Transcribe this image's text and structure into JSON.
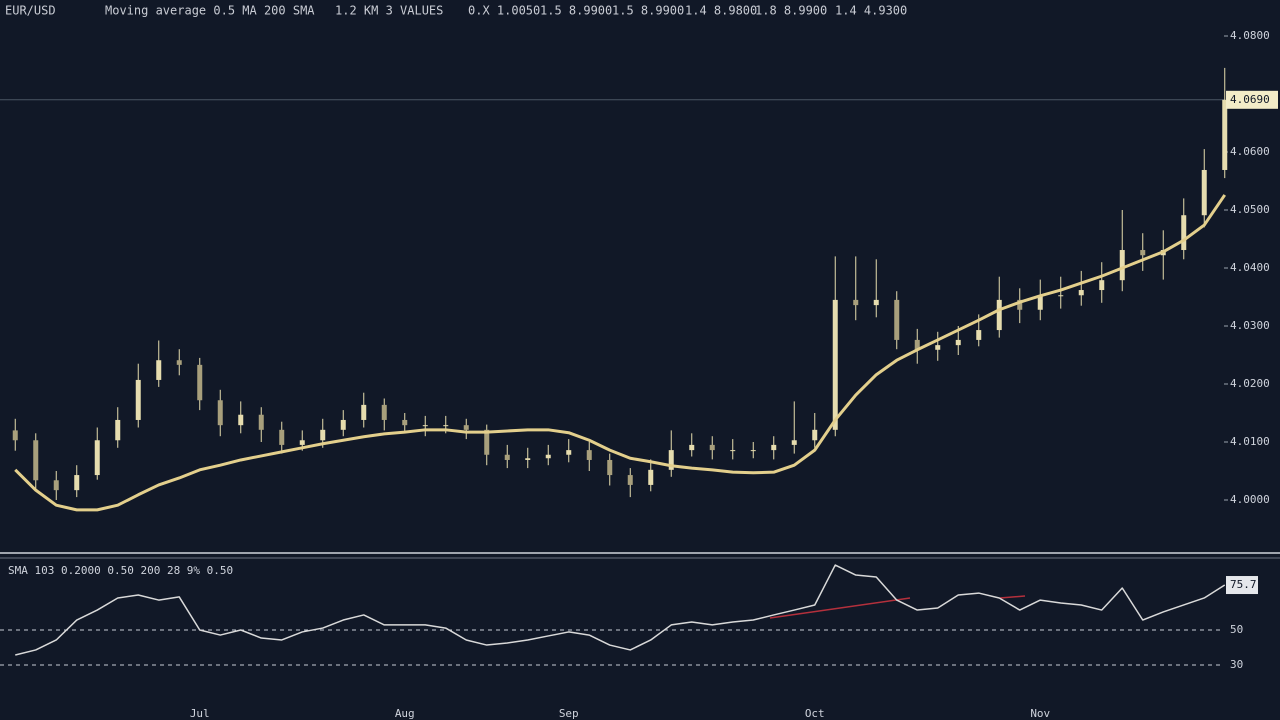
{
  "header": {
    "items": [
      "EUR/USD",
      "Moving average 0.5 MA 200 SMA",
      "1.2 KM 3 VALUES",
      "0.X 1.0050",
      "1.5 8.9900",
      "1.5 8.9900",
      "1.4 8.9800",
      "1.8 8.9900",
      "1.4 4.9300"
    ]
  },
  "chart_data": [
    {
      "type": "candlestick",
      "categories": [
        null,
        null,
        null,
        null,
        null,
        null,
        null,
        null,
        null,
        "Jul",
        null,
        null,
        null,
        null,
        null,
        null,
        null,
        null,
        null,
        "Aug",
        null,
        null,
        null,
        null,
        null,
        null,
        null,
        "Sep",
        null,
        null,
        null,
        null,
        null,
        null,
        null,
        null,
        null,
        null,
        null,
        "Oct",
        null,
        null,
        null,
        null,
        null,
        null,
        null,
        null,
        null,
        null,
        "Nov",
        null,
        null,
        null,
        null,
        null,
        null,
        null,
        null,
        null
      ],
      "open": [
        4.012,
        4.0103,
        4.0034,
        4.0017,
        4.0043,
        4.0103,
        4.0138,
        4.0207,
        4.0241,
        4.0233,
        4.0172,
        4.0129,
        4.0147,
        4.0121,
        4.0095,
        4.0103,
        4.0121,
        4.0138,
        4.0164,
        4.0138,
        4.0129,
        4.0129,
        4.0129,
        4.0121,
        4.0078,
        4.0069,
        4.0072,
        4.0078,
        4.0086,
        4.0069,
        4.0043,
        4.0026,
        4.0052,
        4.0086,
        4.0095,
        4.0086,
        4.0086,
        4.0086,
        4.0095,
        4.0103,
        4.0121,
        4.0345,
        4.0336,
        4.0345,
        4.0276,
        4.0259,
        4.0267,
        4.0276,
        4.0293,
        4.0345,
        4.0328,
        4.0353,
        4.0353,
        4.0362,
        4.0379,
        4.0431,
        4.0422,
        4.0431,
        4.0491,
        4.0569
      ],
      "high": [
        4.014,
        4.0115,
        4.005,
        4.006,
        4.0125,
        4.016,
        4.0235,
        4.0275,
        4.026,
        4.0245,
        4.019,
        4.017,
        4.016,
        4.0135,
        4.012,
        4.014,
        4.0155,
        4.0185,
        4.0175,
        4.015,
        4.0145,
        4.0145,
        4.014,
        4.013,
        4.0095,
        4.009,
        4.0095,
        4.0105,
        4.01,
        4.008,
        4.0055,
        4.007,
        4.012,
        4.0115,
        4.011,
        4.0105,
        4.01,
        4.011,
        4.017,
        4.015,
        4.042,
        4.042,
        4.0415,
        4.036,
        4.0295,
        4.029,
        4.03,
        4.032,
        4.0385,
        4.0365,
        4.038,
        4.0385,
        4.0395,
        4.041,
        4.05,
        4.046,
        4.0465,
        4.052,
        4.0605,
        4.0745
      ],
      "low": [
        4.0085,
        4.0015,
        4.0,
        4.0005,
        4.0035,
        4.009,
        4.0125,
        4.0195,
        4.0215,
        4.0155,
        4.011,
        4.0115,
        4.01,
        4.008,
        4.0085,
        4.009,
        4.011,
        4.0125,
        4.012,
        4.0115,
        4.011,
        4.0115,
        4.0105,
        4.006,
        4.0055,
        4.0055,
        4.006,
        4.0065,
        4.005,
        4.0025,
        4.0005,
        4.0015,
        4.004,
        4.0075,
        4.007,
        4.007,
        4.0072,
        4.007,
        4.008,
        4.009,
        4.011,
        4.031,
        4.0315,
        4.026,
        4.0235,
        4.024,
        4.025,
        4.0265,
        4.028,
        4.0305,
        4.031,
        4.033,
        4.0335,
        4.034,
        4.036,
        4.0395,
        4.038,
        4.0415,
        4.047,
        4.0555
      ],
      "close": [
        4.0103,
        4.0034,
        4.0017,
        4.0043,
        4.0103,
        4.0138,
        4.0207,
        4.0241,
        4.0233,
        4.0172,
        4.0129,
        4.0147,
        4.0121,
        4.0095,
        4.0103,
        4.0121,
        4.0138,
        4.0164,
        4.0138,
        4.0129,
        4.0129,
        4.0129,
        4.0121,
        4.0078,
        4.0069,
        4.0072,
        4.0078,
        4.0086,
        4.0069,
        4.0043,
        4.0026,
        4.0052,
        4.0086,
        4.0095,
        4.0086,
        4.0086,
        4.0086,
        4.0095,
        4.0103,
        4.0121,
        4.0345,
        4.0336,
        4.0345,
        4.0276,
        4.0259,
        4.0267,
        4.0276,
        4.0293,
        4.0345,
        4.0328,
        4.0353,
        4.0353,
        4.0362,
        4.0379,
        4.0431,
        4.0422,
        4.0431,
        4.0491,
        4.0569,
        4.069
      ],
      "color": "#e6dcae",
      "ma": {
        "color": "#e3cf8c",
        "values": [
          4.0052,
          4.0017,
          3.9991,
          3.9983,
          3.9983,
          3.9991,
          4.0009,
          4.0026,
          4.0038,
          4.0052,
          4.006,
          4.0069,
          4.0076,
          4.0083,
          4.009,
          4.0097,
          4.0103,
          4.0109,
          4.0114,
          4.0117,
          4.0121,
          4.0121,
          4.0117,
          4.0117,
          4.0119,
          4.0121,
          4.0121,
          4.0116,
          4.0103,
          4.0086,
          4.0072,
          4.0066,
          4.0059,
          4.0055,
          4.0052,
          4.0048,
          4.0047,
          4.0048,
          4.006,
          4.0086,
          4.0138,
          4.0181,
          4.0216,
          4.0241,
          4.0259,
          4.0276,
          4.0293,
          4.031,
          4.0328,
          4.0341,
          4.0352,
          4.0362,
          4.0374,
          4.0386,
          4.04,
          4.0414,
          4.0428,
          4.0448,
          4.0474,
          4.0526
        ]
      },
      "last_label": "4.0690",
      "ylim": [
        3.99,
        4.085
      ],
      "yticks": [
        {
          "value": 4.0,
          "label": "4.0000"
        },
        {
          "value": 4.01,
          "label": "4.0100"
        },
        {
          "value": 4.02,
          "label": "4.0200"
        },
        {
          "value": 4.03,
          "label": "4.0300"
        },
        {
          "value": 4.04,
          "label": "4.0400"
        },
        {
          "value": 4.05,
          "label": "4.0500"
        },
        {
          "value": 4.06,
          "label": "4.0600"
        },
        {
          "value": 4.08,
          "label": "4.0800"
        }
      ],
      "grid": false
    },
    {
      "type": "line",
      "title": "SMA 103 0.2000 0.50  200 28  9% 0.50",
      "color": "#d9d9d9",
      "values": [
        35.7,
        38.6,
        44.3,
        55.7,
        61.4,
        68.3,
        70,
        67.1,
        68.9,
        50,
        47.1,
        50,
        45.4,
        44.3,
        48.9,
        51.1,
        55.7,
        58.6,
        52.9,
        52.9,
        52.9,
        51.1,
        44.3,
        41.4,
        42.6,
        44.3,
        46.6,
        48.9,
        47.1,
        41.4,
        38.6,
        44.3,
        52.9,
        54.6,
        52.9,
        54.6,
        55.7,
        58.6,
        61.4,
        64.3,
        87.1,
        81.4,
        80.3,
        67.1,
        61.4,
        62.6,
        70,
        71.1,
        68.3,
        61.4,
        67.1,
        65.4,
        64.3,
        61.4,
        74,
        55.7,
        60.3,
        64.3,
        68.3,
        75.7
      ],
      "ylim": [
        10,
        90
      ],
      "yticks": [
        30,
        50
      ],
      "grid": true
    }
  ]
}
